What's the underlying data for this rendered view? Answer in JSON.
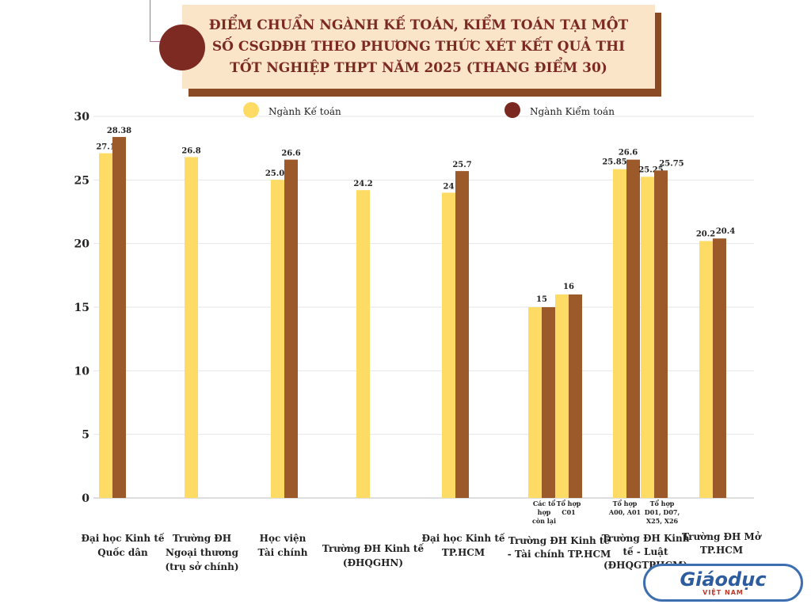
{
  "title": "ĐIỂM CHUẨN NGÀNH KẾ TOÁN, KIỂM TOÁN TẠI MỘT SỐ CSGDĐH THEO PHƯƠNG THỨC XÉT KẾT QUẢ THI TỐT NGHIỆP THPT  NĂM 2025 (THANG ĐIỂM 30)",
  "logo": {
    "main": "Giáodục",
    "sub": "VIỆT NAM"
  },
  "chart_data": {
    "type": "bar",
    "ylim": [
      0,
      30
    ],
    "yticks": [
      0,
      5,
      10,
      15,
      20,
      25,
      30
    ],
    "grid": true,
    "legend_position": "top",
    "colors": {
      "ke_toan": "#fedb64",
      "kiem_toan": "#9c5a2b",
      "legend_ke_toan": "#fedb64",
      "legend_kiem_toan": "#7a2820"
    },
    "series": [
      {
        "name": "Ngành Kế toán"
      },
      {
        "name": "Ngành Kiểm toán"
      }
    ],
    "groups": [
      {
        "label": [
          "Đại học Kinh tế",
          "Quốc dân"
        ],
        "bars": [
          {
            "series": 0,
            "value": 27.1,
            "label": "27.1"
          },
          {
            "series": 1,
            "value": 28.38,
            "label": "28.38"
          }
        ]
      },
      {
        "label": [
          "Trường ĐH",
          "Ngoại thương",
          "(trụ sở chính)"
        ],
        "bars": [
          {
            "series": 0,
            "value": 26.8,
            "label": "26.8"
          }
        ]
      },
      {
        "label": [
          "Học viện",
          "Tài chính"
        ],
        "bars": [
          {
            "series": 0,
            "value": 25.01,
            "label": "25.01"
          },
          {
            "series": 1,
            "value": 26.6,
            "label": "26.6"
          }
        ]
      },
      {
        "label": [
          "Trường ĐH Kinh tế",
          "(ĐHQGHN)"
        ],
        "bars": [
          {
            "series": 0,
            "value": 24.2,
            "label": "24.2"
          }
        ]
      },
      {
        "label": [
          "Đại học Kinh tế",
          "TP.HCM"
        ],
        "bars": [
          {
            "series": 0,
            "value": 24,
            "label": "24"
          },
          {
            "series": 1,
            "value": 25.7,
            "label": "25.7"
          }
        ]
      },
      {
        "label": [
          "Trường ĐH Kinh tế",
          "- Tài chính TP.HCM"
        ],
        "subgroups": [
          {
            "label": [
              "Các tổ",
              "hợp",
              "còn lại"
            ],
            "bars": [
              {
                "series": 0,
                "value": 15
              },
              {
                "series": 1,
                "value": 15
              }
            ],
            "value_label": "15"
          },
          {
            "label": [
              "Tổ hợp",
              "C01"
            ],
            "bars": [
              {
                "series": 0,
                "value": 16
              },
              {
                "series": 1,
                "value": 16
              }
            ],
            "value_label": "16"
          }
        ]
      },
      {
        "label": [
          "Trường ĐH Kinh",
          "tế - Luật",
          "(ĐHQGTPHCM)"
        ],
        "subgroups": [
          {
            "label": [
              "Tổ hợp",
              "A00, A01"
            ],
            "bars": [
              {
                "series": 0,
                "value": 25.85,
                "label": "25.85"
              },
              {
                "series": 1,
                "value": 26.6,
                "label": "26.6"
              }
            ]
          },
          {
            "label": [
              "Tổ hợp",
              "D01, D07,",
              "X25, X26"
            ],
            "bars": [
              {
                "series": 0,
                "value": 25.25,
                "label": "25.25"
              },
              {
                "series": 1,
                "value": 25.75,
                "label": "25.75"
              }
            ]
          }
        ]
      },
      {
        "label": [
          "Trường ĐH Mở",
          "TP.HCM"
        ],
        "bars": [
          {
            "series": 0,
            "value": 20.2,
            "label": "20.2"
          },
          {
            "series": 1,
            "value": 20.4,
            "label": "20.4"
          }
        ]
      }
    ]
  }
}
